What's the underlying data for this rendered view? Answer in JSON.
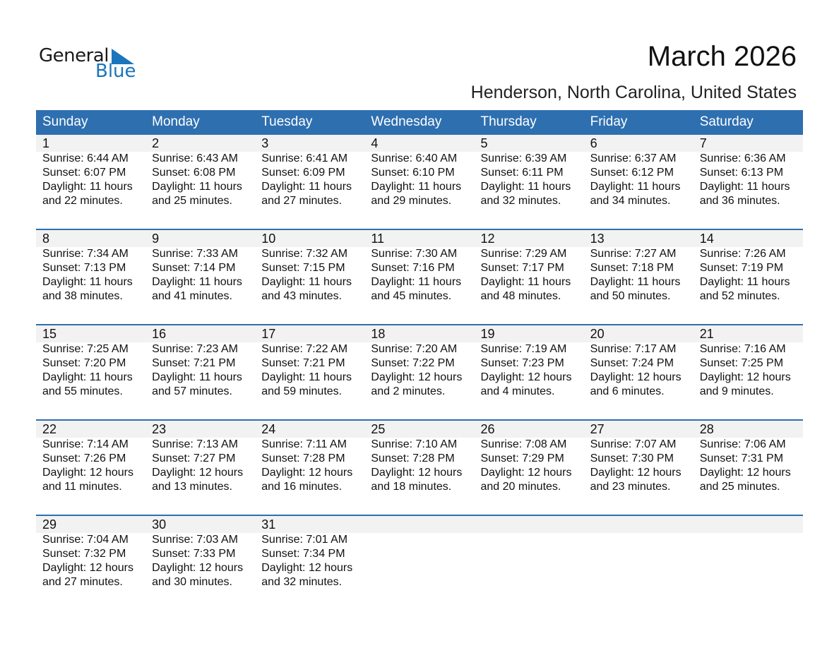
{
  "logo": {
    "text1": "General",
    "text2": "Blue",
    "brand_color": "#1a75bc"
  },
  "title": "March 2026",
  "subtitle": "Henderson, North Carolina, United States",
  "header_color": "#2e6fb0",
  "days_of_week": [
    "Sunday",
    "Monday",
    "Tuesday",
    "Wednesday",
    "Thursday",
    "Friday",
    "Saturday"
  ],
  "weeks": [
    [
      {
        "day": "1",
        "sunrise": "Sunrise: 6:44 AM",
        "sunset": "Sunset: 6:07 PM",
        "daylight1": "Daylight: 11 hours",
        "daylight2": "and 22 minutes."
      },
      {
        "day": "2",
        "sunrise": "Sunrise: 6:43 AM",
        "sunset": "Sunset: 6:08 PM",
        "daylight1": "Daylight: 11 hours",
        "daylight2": "and 25 minutes."
      },
      {
        "day": "3",
        "sunrise": "Sunrise: 6:41 AM",
        "sunset": "Sunset: 6:09 PM",
        "daylight1": "Daylight: 11 hours",
        "daylight2": "and 27 minutes."
      },
      {
        "day": "4",
        "sunrise": "Sunrise: 6:40 AM",
        "sunset": "Sunset: 6:10 PM",
        "daylight1": "Daylight: 11 hours",
        "daylight2": "and 29 minutes."
      },
      {
        "day": "5",
        "sunrise": "Sunrise: 6:39 AM",
        "sunset": "Sunset: 6:11 PM",
        "daylight1": "Daylight: 11 hours",
        "daylight2": "and 32 minutes."
      },
      {
        "day": "6",
        "sunrise": "Sunrise: 6:37 AM",
        "sunset": "Sunset: 6:12 PM",
        "daylight1": "Daylight: 11 hours",
        "daylight2": "and 34 minutes."
      },
      {
        "day": "7",
        "sunrise": "Sunrise: 6:36 AM",
        "sunset": "Sunset: 6:13 PM",
        "daylight1": "Daylight: 11 hours",
        "daylight2": "and 36 minutes."
      }
    ],
    [
      {
        "day": "8",
        "sunrise": "Sunrise: 7:34 AM",
        "sunset": "Sunset: 7:13 PM",
        "daylight1": "Daylight: 11 hours",
        "daylight2": "and 38 minutes."
      },
      {
        "day": "9",
        "sunrise": "Sunrise: 7:33 AM",
        "sunset": "Sunset: 7:14 PM",
        "daylight1": "Daylight: 11 hours",
        "daylight2": "and 41 minutes."
      },
      {
        "day": "10",
        "sunrise": "Sunrise: 7:32 AM",
        "sunset": "Sunset: 7:15 PM",
        "daylight1": "Daylight: 11 hours",
        "daylight2": "and 43 minutes."
      },
      {
        "day": "11",
        "sunrise": "Sunrise: 7:30 AM",
        "sunset": "Sunset: 7:16 PM",
        "daylight1": "Daylight: 11 hours",
        "daylight2": "and 45 minutes."
      },
      {
        "day": "12",
        "sunrise": "Sunrise: 7:29 AM",
        "sunset": "Sunset: 7:17 PM",
        "daylight1": "Daylight: 11 hours",
        "daylight2": "and 48 minutes."
      },
      {
        "day": "13",
        "sunrise": "Sunrise: 7:27 AM",
        "sunset": "Sunset: 7:18 PM",
        "daylight1": "Daylight: 11 hours",
        "daylight2": "and 50 minutes."
      },
      {
        "day": "14",
        "sunrise": "Sunrise: 7:26 AM",
        "sunset": "Sunset: 7:19 PM",
        "daylight1": "Daylight: 11 hours",
        "daylight2": "and 52 minutes."
      }
    ],
    [
      {
        "day": "15",
        "sunrise": "Sunrise: 7:25 AM",
        "sunset": "Sunset: 7:20 PM",
        "daylight1": "Daylight: 11 hours",
        "daylight2": "and 55 minutes."
      },
      {
        "day": "16",
        "sunrise": "Sunrise: 7:23 AM",
        "sunset": "Sunset: 7:21 PM",
        "daylight1": "Daylight: 11 hours",
        "daylight2": "and 57 minutes."
      },
      {
        "day": "17",
        "sunrise": "Sunrise: 7:22 AM",
        "sunset": "Sunset: 7:21 PM",
        "daylight1": "Daylight: 11 hours",
        "daylight2": "and 59 minutes."
      },
      {
        "day": "18",
        "sunrise": "Sunrise: 7:20 AM",
        "sunset": "Sunset: 7:22 PM",
        "daylight1": "Daylight: 12 hours",
        "daylight2": "and 2 minutes."
      },
      {
        "day": "19",
        "sunrise": "Sunrise: 7:19 AM",
        "sunset": "Sunset: 7:23 PM",
        "daylight1": "Daylight: 12 hours",
        "daylight2": "and 4 minutes."
      },
      {
        "day": "20",
        "sunrise": "Sunrise: 7:17 AM",
        "sunset": "Sunset: 7:24 PM",
        "daylight1": "Daylight: 12 hours",
        "daylight2": "and 6 minutes."
      },
      {
        "day": "21",
        "sunrise": "Sunrise: 7:16 AM",
        "sunset": "Sunset: 7:25 PM",
        "daylight1": "Daylight: 12 hours",
        "daylight2": "and 9 minutes."
      }
    ],
    [
      {
        "day": "22",
        "sunrise": "Sunrise: 7:14 AM",
        "sunset": "Sunset: 7:26 PM",
        "daylight1": "Daylight: 12 hours",
        "daylight2": "and 11 minutes."
      },
      {
        "day": "23",
        "sunrise": "Sunrise: 7:13 AM",
        "sunset": "Sunset: 7:27 PM",
        "daylight1": "Daylight: 12 hours",
        "daylight2": "and 13 minutes."
      },
      {
        "day": "24",
        "sunrise": "Sunrise: 7:11 AM",
        "sunset": "Sunset: 7:28 PM",
        "daylight1": "Daylight: 12 hours",
        "daylight2": "and 16 minutes."
      },
      {
        "day": "25",
        "sunrise": "Sunrise: 7:10 AM",
        "sunset": "Sunset: 7:28 PM",
        "daylight1": "Daylight: 12 hours",
        "daylight2": "and 18 minutes."
      },
      {
        "day": "26",
        "sunrise": "Sunrise: 7:08 AM",
        "sunset": "Sunset: 7:29 PM",
        "daylight1": "Daylight: 12 hours",
        "daylight2": "and 20 minutes."
      },
      {
        "day": "27",
        "sunrise": "Sunrise: 7:07 AM",
        "sunset": "Sunset: 7:30 PM",
        "daylight1": "Daylight: 12 hours",
        "daylight2": "and 23 minutes."
      },
      {
        "day": "28",
        "sunrise": "Sunrise: 7:06 AM",
        "sunset": "Sunset: 7:31 PM",
        "daylight1": "Daylight: 12 hours",
        "daylight2": "and 25 minutes."
      }
    ],
    [
      {
        "day": "29",
        "sunrise": "Sunrise: 7:04 AM",
        "sunset": "Sunset: 7:32 PM",
        "daylight1": "Daylight: 12 hours",
        "daylight2": "and 27 minutes."
      },
      {
        "day": "30",
        "sunrise": "Sunrise: 7:03 AM",
        "sunset": "Sunset: 7:33 PM",
        "daylight1": "Daylight: 12 hours",
        "daylight2": "and 30 minutes."
      },
      {
        "day": "31",
        "sunrise": "Sunrise: 7:01 AM",
        "sunset": "Sunset: 7:34 PM",
        "daylight1": "Daylight: 12 hours",
        "daylight2": "and 32 minutes."
      },
      null,
      null,
      null,
      null
    ]
  ]
}
